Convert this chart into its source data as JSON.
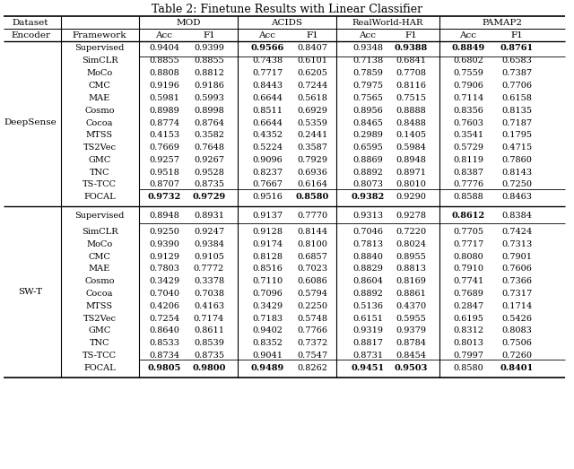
{
  "title": "Table 2: Finetune Results with Linear Classifier",
  "datasets": [
    "MOD",
    "ACIDS",
    "RealWorld-HAR",
    "PAMAP2"
  ],
  "encoders": [
    "DeepSense",
    "SW-T"
  ],
  "frameworks_group": [
    "SimCLR",
    "MoCo",
    "CMC",
    "MAE",
    "Cosmo",
    "Cocoa",
    "MTSS",
    "TS2Vec",
    "GMC",
    "TNC",
    "TS-TCC"
  ],
  "deepsense_supervised": [
    0.9404,
    0.9399,
    0.9566,
    0.8407,
    0.9348,
    0.9388,
    0.8849,
    0.8761
  ],
  "deepsense_supervised_bold": [
    false,
    false,
    true,
    false,
    false,
    true,
    true,
    true
  ],
  "deepsense_group": [
    [
      0.8855,
      0.8855,
      0.7438,
      0.6101,
      0.7138,
      0.6841,
      0.6802,
      0.6583
    ],
    [
      0.8808,
      0.8812,
      0.7717,
      0.6205,
      0.7859,
      0.7708,
      0.7559,
      0.7387
    ],
    [
      0.9196,
      0.9186,
      0.8443,
      0.7244,
      0.7975,
      0.8116,
      0.7906,
      0.7706
    ],
    [
      0.5981,
      0.5993,
      0.6644,
      0.5618,
      0.7565,
      0.7515,
      0.7114,
      0.6158
    ],
    [
      0.8989,
      0.8998,
      0.8511,
      0.6929,
      0.8956,
      0.8888,
      0.8356,
      0.8135
    ],
    [
      0.8774,
      0.8764,
      0.6644,
      0.5359,
      0.8465,
      0.8488,
      0.7603,
      0.7187
    ],
    [
      0.4153,
      0.3582,
      0.4352,
      0.2441,
      0.2989,
      0.1405,
      0.3541,
      0.1795
    ],
    [
      0.7669,
      0.7648,
      0.5224,
      0.3587,
      0.6595,
      0.5984,
      0.5729,
      0.4715
    ],
    [
      0.9257,
      0.9267,
      0.9096,
      0.7929,
      0.8869,
      0.8948,
      0.8119,
      0.786
    ],
    [
      0.9518,
      0.9528,
      0.8237,
      0.6936,
      0.8892,
      0.8971,
      0.8387,
      0.8143
    ],
    [
      0.8707,
      0.8735,
      0.7667,
      0.6164,
      0.8073,
      0.801,
      0.7776,
      0.725
    ]
  ],
  "deepsense_group_bold": [
    [
      false,
      false,
      false,
      false,
      false,
      false,
      false,
      false
    ],
    [
      false,
      false,
      false,
      false,
      false,
      false,
      false,
      false
    ],
    [
      false,
      false,
      false,
      false,
      false,
      false,
      false,
      false
    ],
    [
      false,
      false,
      false,
      false,
      false,
      false,
      false,
      false
    ],
    [
      false,
      false,
      false,
      false,
      false,
      false,
      false,
      false
    ],
    [
      false,
      false,
      false,
      false,
      false,
      false,
      false,
      false
    ],
    [
      false,
      false,
      false,
      false,
      false,
      false,
      false,
      false
    ],
    [
      false,
      false,
      false,
      false,
      false,
      false,
      false,
      false
    ],
    [
      false,
      false,
      false,
      false,
      false,
      false,
      false,
      false
    ],
    [
      false,
      false,
      false,
      false,
      false,
      false,
      false,
      false
    ],
    [
      false,
      false,
      false,
      false,
      false,
      false,
      false,
      false
    ]
  ],
  "deepsense_focal": [
    0.9732,
    0.9729,
    0.9516,
    0.858,
    0.9382,
    0.929,
    0.8588,
    0.8463
  ],
  "deepsense_focal_bold": [
    true,
    true,
    false,
    true,
    true,
    false,
    false,
    false
  ],
  "swt_supervised": [
    0.8948,
    0.8931,
    0.9137,
    0.777,
    0.9313,
    0.9278,
    0.8612,
    0.8384
  ],
  "swt_supervised_bold": [
    false,
    false,
    false,
    false,
    false,
    false,
    true,
    false
  ],
  "swt_group": [
    [
      0.925,
      0.9247,
      0.9128,
      0.8144,
      0.7046,
      0.722,
      0.7705,
      0.7424
    ],
    [
      0.939,
      0.9384,
      0.9174,
      0.81,
      0.7813,
      0.8024,
      0.7717,
      0.7313
    ],
    [
      0.9129,
      0.9105,
      0.8128,
      0.6857,
      0.884,
      0.8955,
      0.808,
      0.7901
    ],
    [
      0.7803,
      0.7772,
      0.8516,
      0.7023,
      0.8829,
      0.8813,
      0.791,
      0.7606
    ],
    [
      0.3429,
      0.3378,
      0.711,
      0.6086,
      0.8604,
      0.8169,
      0.7741,
      0.7366
    ],
    [
      0.704,
      0.7038,
      0.7096,
      0.5794,
      0.8892,
      0.8861,
      0.7689,
      0.7317
    ],
    [
      0.4206,
      0.4163,
      0.3429,
      0.225,
      0.5136,
      0.437,
      0.2847,
      0.1714
    ],
    [
      0.7254,
      0.7174,
      0.7183,
      0.5748,
      0.6151,
      0.5955,
      0.6195,
      0.5426
    ],
    [
      0.864,
      0.8611,
      0.9402,
      0.7766,
      0.9319,
      0.9379,
      0.8312,
      0.8083
    ],
    [
      0.8533,
      0.8539,
      0.8352,
      0.7372,
      0.8817,
      0.8784,
      0.8013,
      0.7506
    ],
    [
      0.8734,
      0.8735,
      0.9041,
      0.7547,
      0.8731,
      0.8454,
      0.7997,
      0.726
    ]
  ],
  "swt_group_bold": [
    [
      false,
      false,
      false,
      false,
      false,
      false,
      false,
      false
    ],
    [
      false,
      false,
      false,
      false,
      false,
      false,
      false,
      false
    ],
    [
      false,
      false,
      false,
      false,
      false,
      false,
      false,
      false
    ],
    [
      false,
      false,
      false,
      false,
      false,
      false,
      false,
      false
    ],
    [
      false,
      false,
      false,
      false,
      false,
      false,
      false,
      false
    ],
    [
      false,
      false,
      false,
      false,
      false,
      false,
      false,
      false
    ],
    [
      false,
      false,
      false,
      false,
      false,
      false,
      false,
      false
    ],
    [
      false,
      false,
      false,
      false,
      false,
      false,
      false,
      false
    ],
    [
      false,
      false,
      false,
      false,
      false,
      false,
      false,
      false
    ],
    [
      false,
      false,
      false,
      false,
      false,
      false,
      false,
      false
    ],
    [
      false,
      false,
      false,
      false,
      false,
      false,
      false,
      false
    ]
  ],
  "swt_focal": [
    0.9805,
    0.98,
    0.9489,
    0.8262,
    0.9451,
    0.9503,
    0.858,
    0.8401
  ],
  "swt_focal_bold": [
    true,
    true,
    true,
    false,
    true,
    true,
    false,
    true
  ],
  "title_fontsize": 9.0,
  "header_fontsize": 7.5,
  "data_fontsize": 7.0,
  "encoder_fontsize": 7.5
}
